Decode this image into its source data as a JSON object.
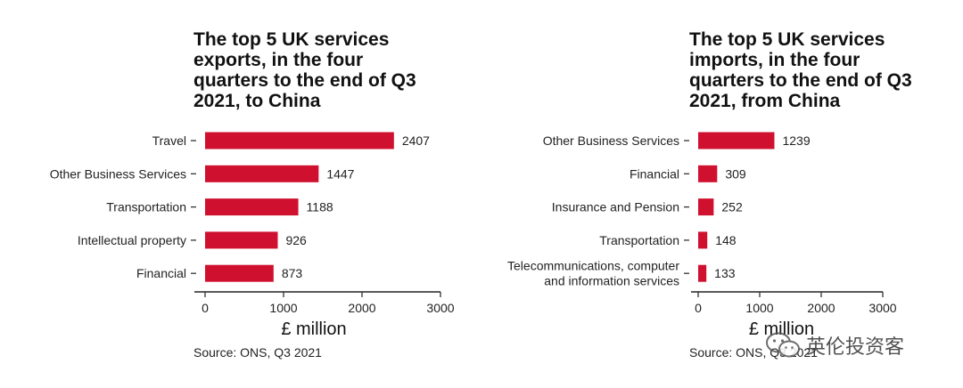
{
  "chart_data": [
    {
      "type": "bar",
      "orientation": "horizontal",
      "title": "The top 5 UK services\nexports, in the four\nquarters to the end of Q3\n2021, to China",
      "categories": [
        "Travel",
        "Other Business Services",
        "Transportation",
        "Intellectual property",
        "Financial"
      ],
      "values": [
        2407,
        1447,
        1188,
        926,
        873
      ],
      "xlabel": "£ million",
      "ylabel": "",
      "xlim": [
        0,
        3000
      ],
      "xticks": [
        "0",
        "1000",
        "2000",
        "3000"
      ],
      "source": "Source: ONS, Q3 2021",
      "bar_color": "#d0102f",
      "grid": false
    },
    {
      "type": "bar",
      "orientation": "horizontal",
      "title": "The top 5 UK services\nimports, in the four\nquarters to the end of Q3\n2021, from China",
      "categories": [
        "Other Business Services",
        "Financial",
        "Insurance and Pension",
        "Transportation",
        "Telecommunications, computer\nand information services"
      ],
      "values": [
        1239,
        309,
        252,
        148,
        133
      ],
      "xlabel": "£ million",
      "ylabel": "",
      "xlim": [
        0,
        3000
      ],
      "xticks": [
        "0",
        "1000",
        "2000",
        "3000"
      ],
      "source": "Source: ONS, Q3 2021",
      "bar_color": "#d0102f",
      "grid": false
    }
  ],
  "watermark": {
    "text": "英伦投资客",
    "icon": "wechat-icon"
  }
}
